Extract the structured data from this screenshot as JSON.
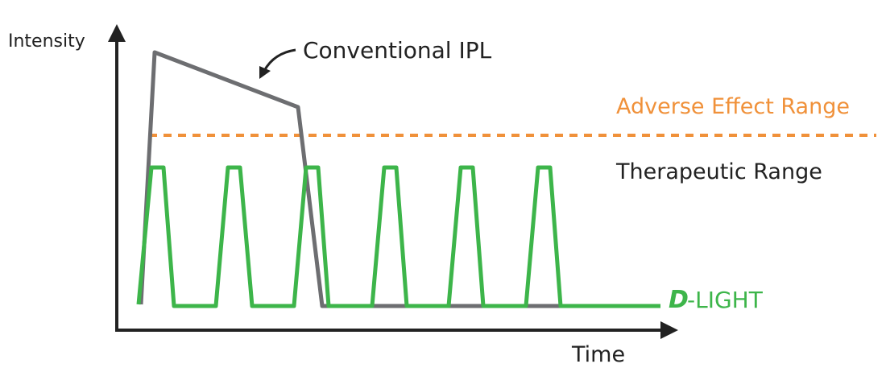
{
  "axes": {
    "y_label": "Intensity",
    "x_label": "Time"
  },
  "labels": {
    "conventional": "Conventional IPL",
    "adverse": "Adverse Effect Range",
    "therapeutic": "Therapeutic Range"
  },
  "logo": {
    "mark": "D",
    "text": "-LIGHT"
  }
}
